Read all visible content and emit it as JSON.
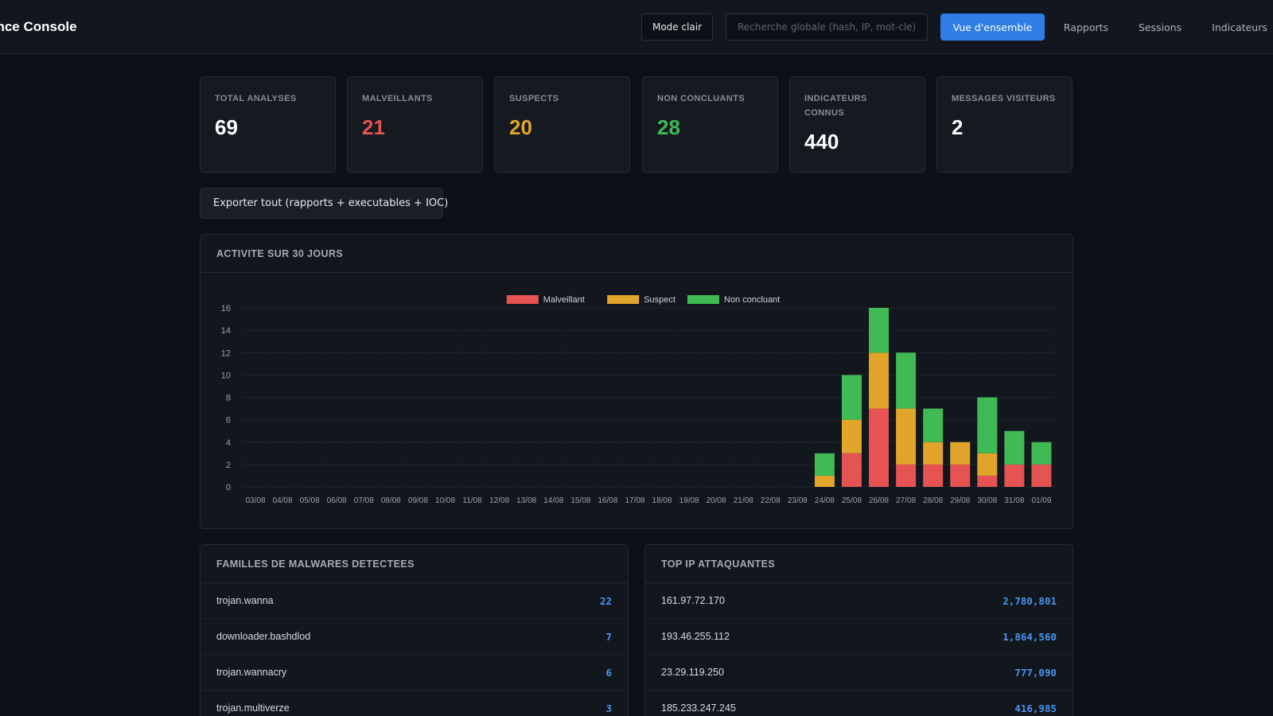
{
  "app": {
    "title": "ence Console"
  },
  "header": {
    "mode_label": "Mode clair",
    "search_placeholder": "Recherche globale (hash, IP, mot-cle)",
    "nav": [
      {
        "label": "Vue d'ensemble",
        "active": true
      },
      {
        "label": "Rapports",
        "active": false
      },
      {
        "label": "Sessions",
        "active": false
      },
      {
        "label": "Indicateurs",
        "active": false
      }
    ]
  },
  "stats": [
    {
      "label": "TOTAL ANALYSES",
      "value": "69",
      "tone": "white"
    },
    {
      "label": "MALVEILLANTS",
      "value": "21",
      "tone": "red"
    },
    {
      "label": "SUSPECTS",
      "value": "20",
      "tone": "orange"
    },
    {
      "label": "NON CONCLUANTS",
      "value": "28",
      "tone": "green"
    },
    {
      "label": "INDICATEURS CONNUS",
      "value": "440",
      "tone": "white"
    },
    {
      "label": "MESSAGES VISITEURS",
      "value": "2",
      "tone": "white"
    }
  ],
  "export_label": "Exporter tout (rapports + executables + IOC)",
  "activity_panel": {
    "title": "ACTIVITE SUR 30 JOURS"
  },
  "chart_data": {
    "type": "bar",
    "stacked": true,
    "categories": [
      "03/08",
      "04/08",
      "05/08",
      "06/08",
      "07/08",
      "08/08",
      "09/08",
      "10/08",
      "11/08",
      "12/08",
      "13/08",
      "14/08",
      "15/08",
      "16/08",
      "17/08",
      "18/08",
      "19/08",
      "20/08",
      "21/08",
      "22/08",
      "23/08",
      "24/08",
      "25/08",
      "26/08",
      "27/08",
      "28/08",
      "29/08",
      "30/08",
      "31/08",
      "01/09"
    ],
    "series": [
      {
        "name": "Malveillant",
        "color": "#e55353",
        "values": [
          0,
          0,
          0,
          0,
          0,
          0,
          0,
          0,
          0,
          0,
          0,
          0,
          0,
          0,
          0,
          0,
          0,
          0,
          0,
          0,
          0,
          0,
          3,
          7,
          2,
          2,
          2,
          1,
          2,
          2
        ]
      },
      {
        "name": "Suspect",
        "color": "#e0a52a",
        "values": [
          0,
          0,
          0,
          0,
          0,
          0,
          0,
          0,
          0,
          0,
          0,
          0,
          0,
          0,
          0,
          0,
          0,
          0,
          0,
          0,
          0,
          1,
          3,
          5,
          5,
          2,
          2,
          2,
          0,
          0
        ]
      },
      {
        "name": "Non concluant",
        "color": "#3fba55",
        "values": [
          0,
          0,
          0,
          0,
          0,
          0,
          0,
          0,
          0,
          0,
          0,
          0,
          0,
          0,
          0,
          0,
          0,
          0,
          0,
          0,
          0,
          2,
          4,
          4,
          5,
          3,
          0,
          5,
          3,
          2
        ]
      }
    ],
    "ylim": [
      0,
      16
    ],
    "yticks": [
      "0",
      "2",
      "4",
      "6",
      "8",
      "10",
      "12",
      "14",
      "16"
    ],
    "legend": "top",
    "grid": true
  },
  "families_panel": {
    "title": "FAMILLES DE MALWARES DETECTEES",
    "rows": [
      {
        "name": "trojan.wanna",
        "value": "22"
      },
      {
        "name": "downloader.bashdlod",
        "value": "7"
      },
      {
        "name": "trojan.wannacry",
        "value": "6"
      },
      {
        "name": "trojan.multiverze",
        "value": "3"
      }
    ]
  },
  "ips_panel": {
    "title": "TOP IP ATTAQUANTES",
    "rows": [
      {
        "name": "161.97.72.170",
        "value": "2,780,801"
      },
      {
        "name": "193.46.255.112",
        "value": "1,864,560"
      },
      {
        "name": "23.29.119.250",
        "value": "777,090"
      },
      {
        "name": "185.233.247.245",
        "value": "416,985"
      }
    ]
  }
}
